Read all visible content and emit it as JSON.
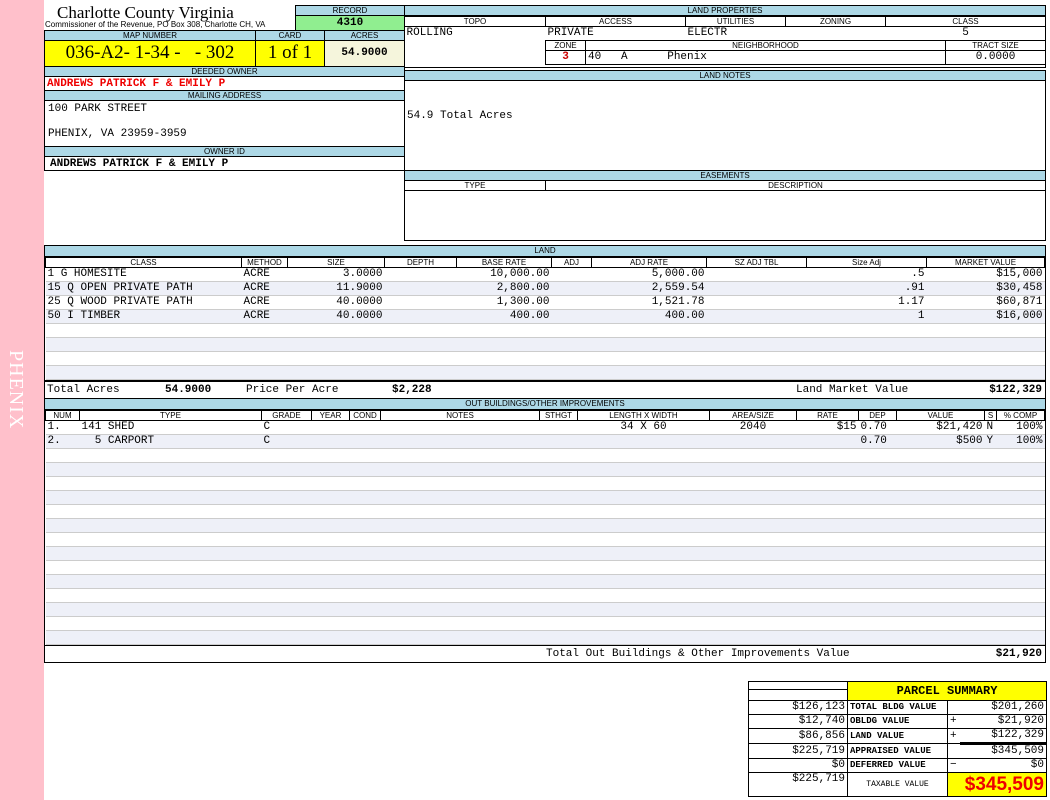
{
  "sidebar": {
    "label": "PHENIX"
  },
  "header": {
    "county": "Charlotte County Virginia",
    "office": "Commissioner of the Revenue, PO Box 308, Charlotte CH, VA",
    "record_label": "RECORD",
    "record": "4310"
  },
  "parcel": {
    "map_label": "MAP NUMBER",
    "map_number": "036-A2- 1-34 -   - 302",
    "card_label": "CARD",
    "card": "1 of 1",
    "acres_label": "ACRES",
    "acres": "54.9000"
  },
  "owner": {
    "deeded_label": "DEEDED OWNER",
    "deeded": "ANDREWS PATRICK F & EMILY P",
    "mailing_label": "MAILING ADDRESS",
    "address1": "100 PARK STREET",
    "address2": "PHENIX, VA 23959-3959",
    "id_label": "OWNER ID",
    "owner_id": "ANDREWS PATRICK F & EMILY P"
  },
  "land_props": {
    "title": "LAND PROPERTIES",
    "topo_label": "TOPO",
    "access_label": "ACCESS",
    "utilities_label": "UTILITIES",
    "zoning_label": "ZONING",
    "class_label": "CLASS",
    "topo": "ROLLING",
    "access": "PRIVATE",
    "utilities": "ELECTR",
    "zoning": "",
    "class": "5",
    "zone_label": "ZONE",
    "neighborhood_label": "NEIGHBORHOOD",
    "tract_label": "TRACT SIZE",
    "zone": "3",
    "neighborhood": "40   A      Phenix",
    "tract": "0.0000"
  },
  "land_notes": {
    "title": "LAND NOTES",
    "text": "54.9 Total Acres"
  },
  "easements": {
    "title": "EASEMENTS",
    "type_label": "TYPE",
    "desc_label": "DESCRIPTION"
  },
  "land": {
    "title": "LAND",
    "columns": [
      "CLASS",
      "METHOD",
      "SIZE",
      "DEPTH",
      "BASE RATE",
      "ADJ",
      "ADJ RATE",
      "SZ ADJ TBL",
      "Size Adj",
      "MARKET VALUE"
    ],
    "rows": [
      [
        "1 G HOMESITE",
        "ACRE",
        "3.0000",
        "",
        "10,000.00",
        "",
        "5,000.00",
        "",
        ".5",
        "$15,000"
      ],
      [
        "15 Q OPEN PRIVATE PATH",
        "ACRE",
        "11.9000",
        "",
        "2,800.00",
        "",
        "2,559.54",
        "",
        ".91",
        "$30,458"
      ],
      [
        "25 Q WOOD PRIVATE PATH",
        "ACRE",
        "40.0000",
        "",
        "1,300.00",
        "",
        "1,521.78",
        "",
        "1.17",
        "$60,871"
      ],
      [
        "50 I TIMBER",
        "ACRE",
        "40.0000",
        "",
        "400.00",
        "",
        "400.00",
        "",
        "1",
        "$16,000"
      ]
    ],
    "total_acres_label": "Total Acres",
    "total_acres": "54.9000",
    "ppa_label": "Price Per Acre",
    "ppa": "$2,228",
    "lmv_label": "Land Market Value",
    "lmv": "$122,329"
  },
  "outbuildings": {
    "title": "OUT BUILDINGS/OTHER IMPROVEMENTS",
    "columns": [
      "NUM",
      "TYPE",
      "GRADE",
      "YEAR",
      "COND",
      "NOTES",
      "STHGT",
      "LENGTH X WIDTH",
      "AREA/SIZE",
      "RATE",
      "DEP",
      "VALUE",
      "S",
      "% COMP"
    ],
    "rows": [
      [
        "1.",
        "141 SHED",
        "C",
        "",
        "",
        "",
        "",
        "34 X 60",
        "2040",
        "$15",
        "0.70",
        "$21,420",
        "N",
        "100%"
      ],
      [
        "2.",
        "  5 CARPORT",
        "C",
        "",
        "",
        "",
        "",
        "",
        "",
        "",
        "0.70",
        "$500",
        "Y",
        "100%"
      ]
    ],
    "total_label": "Total Out Buildings & Other Improvements Value",
    "total": "$21,920"
  },
  "summary": {
    "title": "PARCEL SUMMARY",
    "rows": [
      {
        "prior": "$126,123",
        "label": "TOTAL BLDG VALUE",
        "op": "",
        "value": "$201,260"
      },
      {
        "prior": "$12,740",
        "label": "OBLDG VALUE",
        "op": "+",
        "value": "$21,920"
      },
      {
        "prior": "$86,856",
        "label": "LAND VALUE",
        "op": "+",
        "value": "$122,329"
      },
      {
        "prior": "$225,719",
        "label": "APPRAISED VALUE",
        "op": "",
        "value": "$345,509"
      },
      {
        "prior": "$0",
        "label": "DEFERRED VALUE",
        "op": "−",
        "value": "$0"
      }
    ],
    "taxable_prior": "$225,719",
    "taxable_label": "TAXABLE VALUE",
    "taxable": "$345,509"
  },
  "colors": {
    "sidebar": "#ffc0cb",
    "header": "#add8e6",
    "highlight": "#ffff00",
    "record": "#90ee90",
    "owner_red": "#e00000"
  }
}
